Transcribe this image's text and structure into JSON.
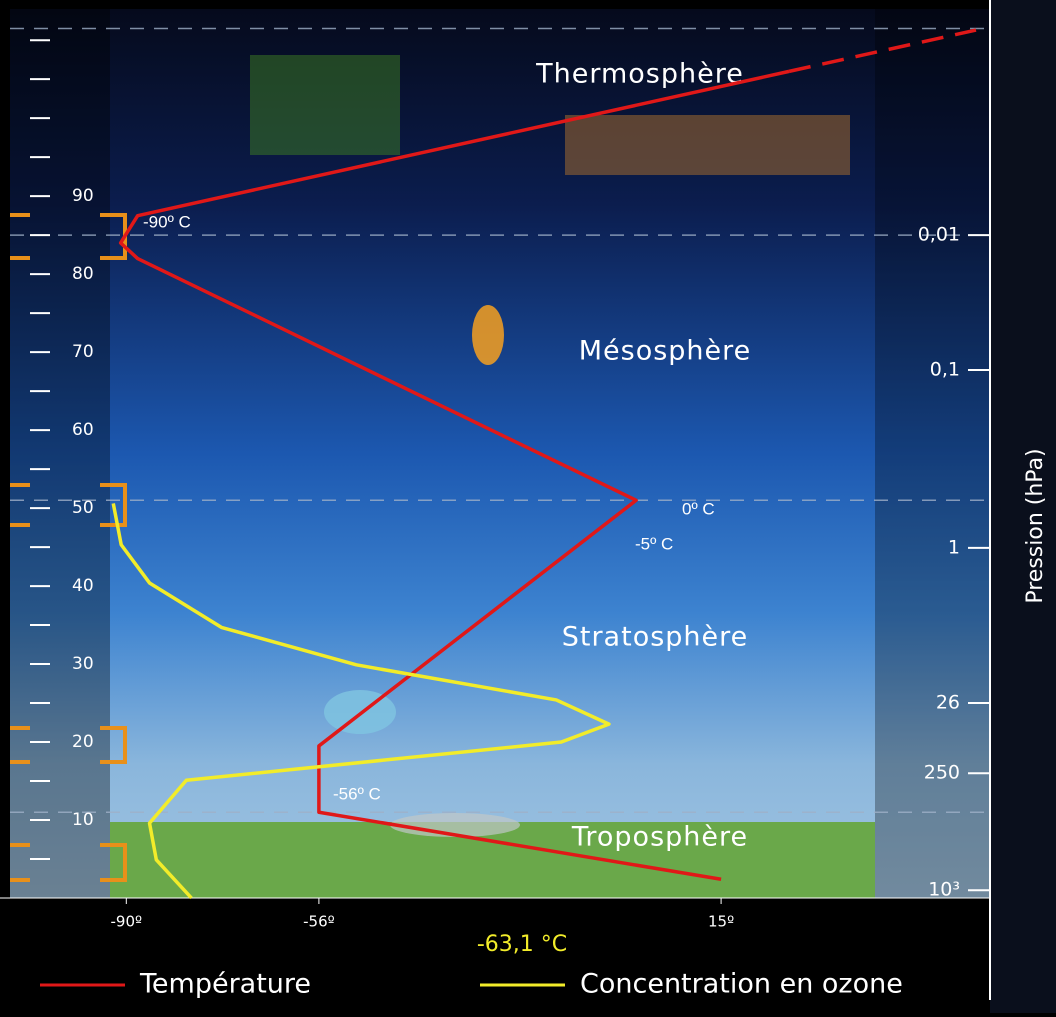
{
  "chart_data": {
    "type": "line",
    "readout": "-63,1 °C",
    "y2_label": "Pression (hPa)",
    "layers": [
      "Thermosphère",
      "Mésosphère",
      "Stratosphère",
      "Troposphère"
    ],
    "annotations": [
      "-90º C",
      "0º C",
      "-5º C",
      "-56º C"
    ],
    "xlim": [
      -107,
      63
    ],
    "ylim": [
      0,
      114
    ],
    "xticks": [
      {
        "value": -90,
        "label": "-90º"
      },
      {
        "value": -56,
        "label": "-56º"
      },
      {
        "value": 15,
        "label": "15º"
      }
    ],
    "yticks": [
      10,
      20,
      30,
      40,
      50,
      60,
      70,
      80,
      90
    ],
    "yminorticks": [
      5,
      15,
      25,
      35,
      45,
      55,
      65,
      75,
      85,
      95,
      100,
      105,
      110
    ],
    "pressure_ticks": [
      {
        "value": 0.01,
        "label": "0,01",
        "altitude": 85
      },
      {
        "value": 0.1,
        "label": "0,1",
        "altitude": 67.7
      },
      {
        "value": 1,
        "label": "1",
        "altitude": 44.9
      },
      {
        "value": 26,
        "label": "26",
        "altitude": 25
      },
      {
        "value": 250,
        "label": "250",
        "altitude": 16
      },
      {
        "value": 1000,
        "label": "10³",
        "altitude": 1
      }
    ],
    "layer_boundaries": [
      11,
      51,
      85,
      111.5
    ],
    "series": [
      {
        "name": "Température",
        "color": "#e01818",
        "dashed_tail": true,
        "x": [
          15,
          -56,
          -56,
          0,
          -88,
          -91,
          -88,
          27,
          60
        ],
        "values": [
          2.4,
          11,
          19.5,
          51,
          82,
          84,
          87.5,
          106,
          111.3
        ]
      },
      {
        "name": "Concentration en ozone",
        "color": "#f2ec2a",
        "dashed_tail": false,
        "x": [
          -92.3,
          -90.9,
          -85.9,
          -73.2,
          -49.4,
          -14.1,
          -4.8,
          -13.2,
          -79.4,
          -85.9,
          -84.7,
          -78.5
        ],
        "values": [
          50.6,
          45.3,
          40.4,
          34.7,
          29.9,
          25.4,
          22.3,
          20.0,
          15.1,
          9.6,
          4.9,
          0
        ]
      }
    ]
  }
}
